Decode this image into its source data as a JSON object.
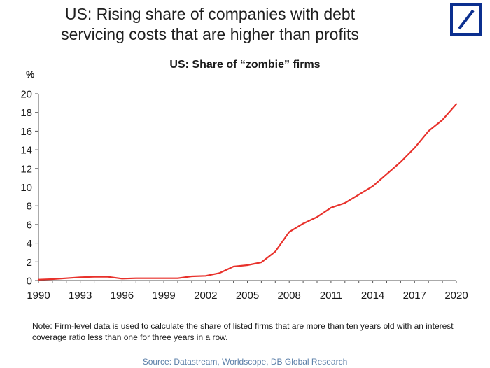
{
  "headline": {
    "line1": "US: Rising share of companies with debt",
    "line2": "servicing costs that are higher than profits"
  },
  "colors": {
    "series": "#e8312b",
    "brand": "#0b2f8f",
    "axis": "#555555"
  },
  "chart_data": {
    "type": "line",
    "title": "US: Share of “zombie” firms",
    "ylabel": "%",
    "xlabel": "",
    "ylim": [
      0,
      20
    ],
    "xlim": [
      1990,
      2020
    ],
    "y_ticks": [
      0,
      2,
      4,
      6,
      8,
      10,
      12,
      14,
      16,
      18,
      20
    ],
    "x_tick_labels": [
      "1990",
      "1993",
      "1996",
      "1999",
      "2002",
      "2005",
      "2008",
      "2011",
      "2014",
      "2017",
      "2020"
    ],
    "grid": false,
    "series": [
      {
        "name": "Share of zombie firms",
        "x": [
          1990,
          1991,
          1992,
          1993,
          1994,
          1995,
          1996,
          1997,
          1998,
          1999,
          2000,
          2001,
          2002,
          2003,
          2004,
          2005,
          2006,
          2007,
          2008,
          2009,
          2010,
          2011,
          2012,
          2013,
          2014,
          2015,
          2016,
          2017,
          2018,
          2019,
          2020
        ],
        "y": [
          0.1,
          0.15,
          0.25,
          0.35,
          0.4,
          0.4,
          0.2,
          0.25,
          0.25,
          0.25,
          0.25,
          0.45,
          0.5,
          0.8,
          1.5,
          1.65,
          1.95,
          3.1,
          5.2,
          6.1,
          6.8,
          7.8,
          8.3,
          9.2,
          10.1,
          11.4,
          12.7,
          14.2,
          16.0,
          17.2,
          18.9
        ]
      }
    ]
  },
  "note": "Note: Firm-level data is used to calculate the share of listed firms that are more than ten years old with an interest coverage ratio less than one for three years in a row.",
  "source": "Source: Datastream, Worldscope, DB Global Research"
}
